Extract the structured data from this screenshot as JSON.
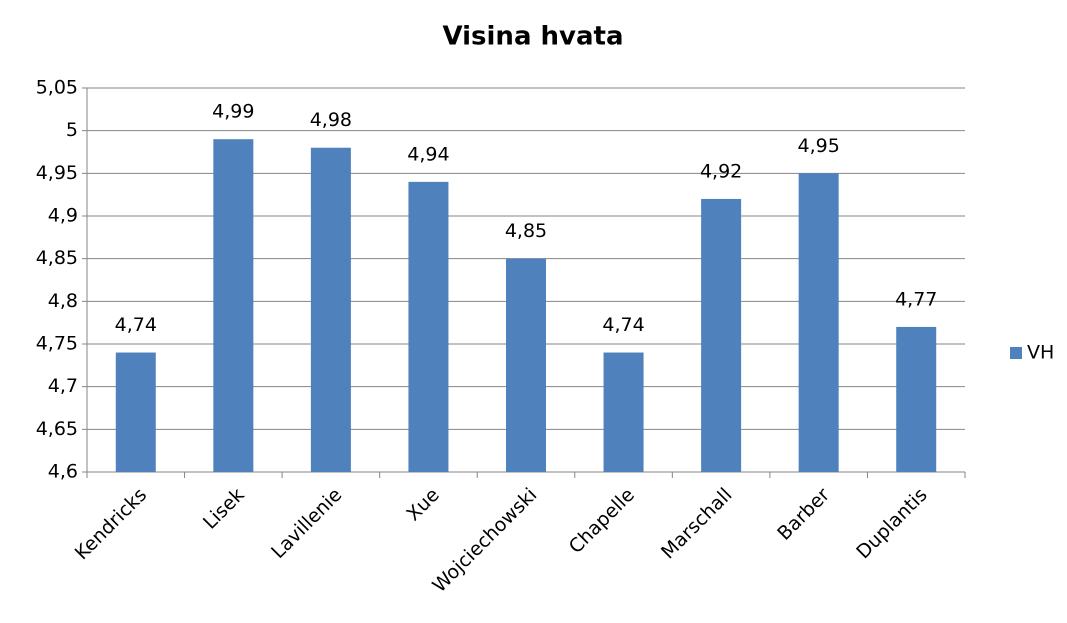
{
  "chart_data": {
    "type": "bar",
    "title": "Visina hvata",
    "categories": [
      "Kendricks",
      "Lisek",
      "Lavillenie",
      "Xue",
      "Wojciechowski",
      "Chapelle",
      "Marschall",
      "Barber",
      "Duplantis"
    ],
    "series": [
      {
        "name": "VH",
        "color": "#4f81bd",
        "values": [
          4.74,
          4.99,
          4.98,
          4.94,
          4.85,
          4.74,
          4.92,
          4.95,
          4.77
        ],
        "value_labels": [
          "4,74",
          "4,99",
          "4,98",
          "4,94",
          "4,85",
          "4,74",
          "4,92",
          "4,95",
          "4,77"
        ]
      }
    ],
    "ylim": [
      4.6,
      5.05
    ],
    "yticks": [
      {
        "value": 4.6,
        "label": "4,6"
      },
      {
        "value": 4.65,
        "label": "4,65"
      },
      {
        "value": 4.7,
        "label": "4,7"
      },
      {
        "value": 4.75,
        "label": "4,75"
      },
      {
        "value": 4.8,
        "label": "4,8"
      },
      {
        "value": 4.85,
        "label": "4,85"
      },
      {
        "value": 4.9,
        "label": "4,9"
      },
      {
        "value": 4.95,
        "label": "4,95"
      },
      5,
      {
        "value": 5.05,
        "label": "5,05"
      }
    ],
    "grid": true,
    "legend": "right"
  }
}
